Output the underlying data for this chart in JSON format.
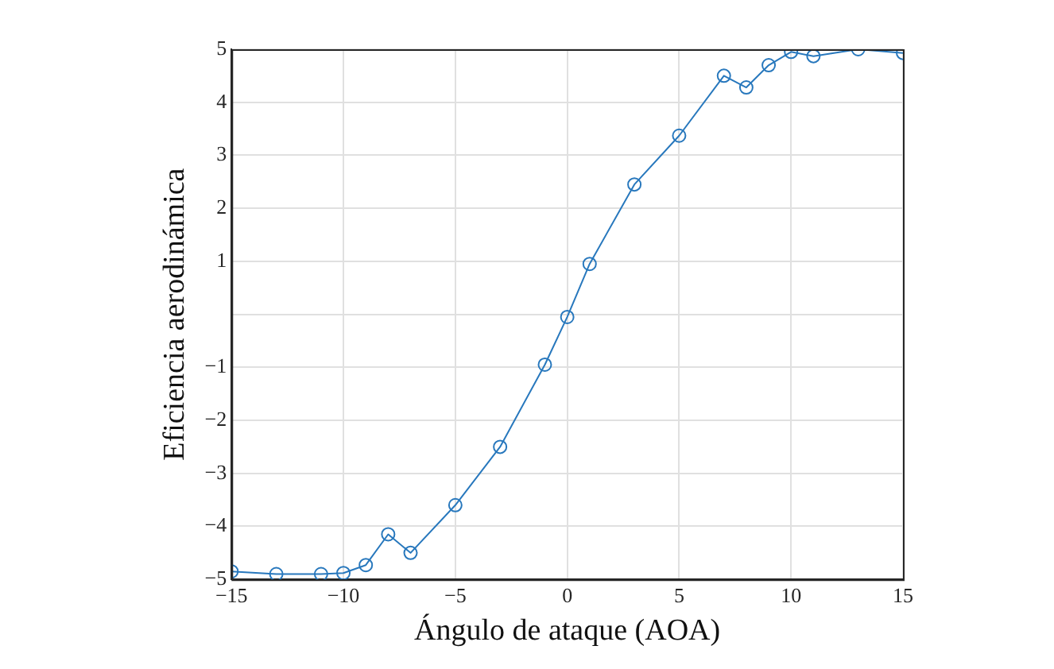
{
  "chart_data": {
    "type": "line",
    "xlabel": "Ángulo de ataque (AOA)",
    "ylabel": "Eficiencia aerodinámica",
    "x": [
      -15,
      -13,
      -11,
      -10,
      -9,
      -8,
      -7,
      -5,
      -3,
      -1,
      0,
      1,
      3,
      5,
      7,
      8,
      9,
      10,
      11,
      13,
      15
    ],
    "series": [
      {
        "color": "#2878bd",
        "values": [
          -4.85,
          -4.9,
          -4.9,
          -4.88,
          -4.73,
          -4.15,
          -4.5,
          -3.6,
          -2.5,
          -0.95,
          -0.05,
          0.95,
          2.45,
          3.37,
          4.5,
          4.28,
          4.7,
          4.95,
          4.87,
          5.0,
          4.93
        ]
      }
    ],
    "xlim": [
      -15,
      15
    ],
    "xticks": [
      -15,
      -10,
      -5,
      0,
      5,
      10,
      15
    ],
    "ylim": [
      -5,
      5
    ],
    "yticks": [
      -5,
      -4,
      -3,
      -2,
      -1,
      {
        "value": 0,
        "label": null
      },
      1,
      2,
      3,
      4,
      5
    ],
    "grid": true,
    "marker": "circle",
    "line_style": "solid",
    "legend": false
  }
}
